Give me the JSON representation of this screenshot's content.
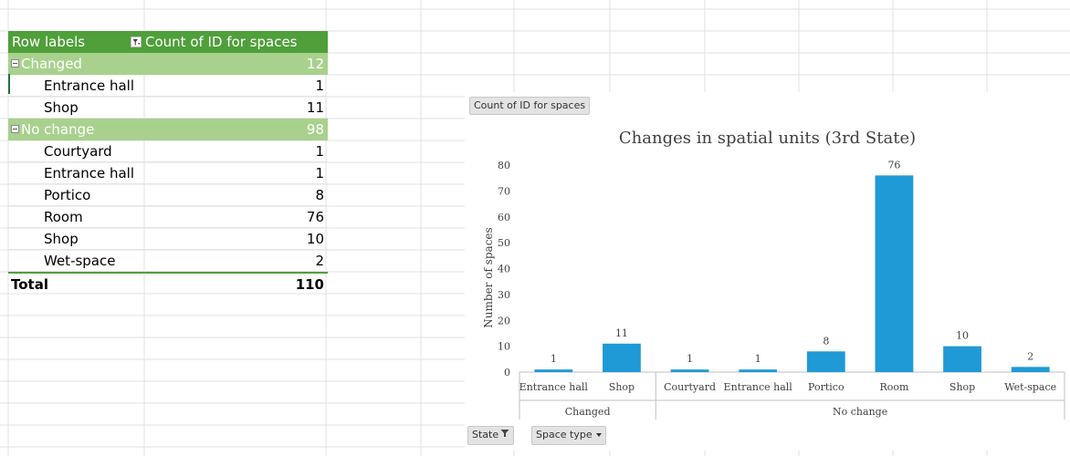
{
  "pivot": {
    "header": {
      "row_labels": "Row labels",
      "value_label": "Count of ID for spaces"
    },
    "groups": [
      {
        "label": "Changed",
        "total": "12",
        "items": [
          {
            "label": "Entrance hall",
            "value": "1"
          },
          {
            "label": "Shop",
            "value": "11"
          }
        ]
      },
      {
        "label": "No change",
        "total": "98",
        "items": [
          {
            "label": "Courtyard",
            "value": "1"
          },
          {
            "label": "Entrance hall",
            "value": "1"
          },
          {
            "label": "Portico",
            "value": "8"
          },
          {
            "label": "Room",
            "value": "76"
          },
          {
            "label": "Shop",
            "value": "10"
          },
          {
            "label": "Wet-space",
            "value": "2"
          }
        ]
      }
    ],
    "total": {
      "label": "Total",
      "value": "110"
    }
  },
  "chart_buttons": {
    "value_field": "Count of ID for spaces",
    "state": "State",
    "space_type": "Space type"
  },
  "colors": {
    "bar": "#1f9ad6",
    "pivot_header": "#4f9f3a",
    "pivot_group": "#a9d18e"
  },
  "chart_data": {
    "type": "bar",
    "title": "Changes in spatial units (3rd State)",
    "ylabel": "Number of spaces",
    "xlabel": "",
    "ylim": [
      0,
      80
    ],
    "yticks": [
      0,
      10,
      20,
      30,
      40,
      50,
      60,
      70,
      80
    ],
    "groups": [
      {
        "name": "Changed",
        "categories": [
          "Entrance hall",
          "Shop"
        ],
        "values": [
          1,
          11
        ]
      },
      {
        "name": "No change",
        "categories": [
          "Courtyard",
          "Entrance hall",
          "Portico",
          "Room",
          "Shop",
          "Wet-space"
        ],
        "values": [
          1,
          1,
          8,
          76,
          10,
          2
        ]
      }
    ],
    "data_labels": true,
    "grid": false,
    "legend": "none"
  }
}
